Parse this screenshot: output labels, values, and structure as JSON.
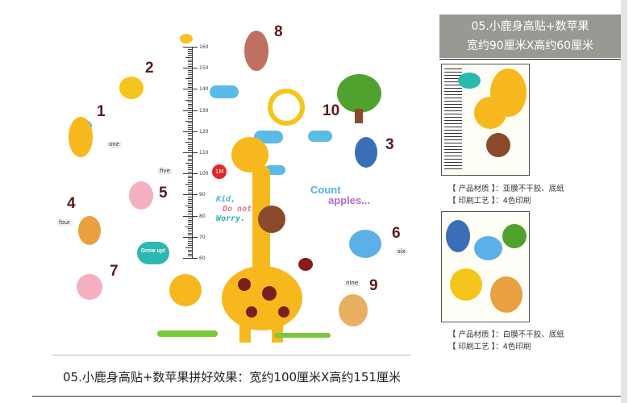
{
  "header": {
    "line1": "05.小鹿身高贴+数苹果",
    "line2": "宽约90厘米X高约60厘米"
  },
  "spec1": {
    "material": "【 产品材质 】：亚膜不干胶、底纸",
    "print": "【 印刷工艺 】：4色印刷"
  },
  "spec2": {
    "material": "【 产品材质 】：白膜不干胶、底纸",
    "print": "【 印刷工艺 】：4色印刷"
  },
  "caption": "05.小鹿身高贴+数苹果拼好效果：宽约100厘米X高约151厘米",
  "ruler": {
    "labels": [
      "160",
      "150",
      "140",
      "130",
      "120",
      "110",
      "100",
      "90",
      "80",
      "70",
      "60"
    ],
    "marker": "1M"
  },
  "numbers": [
    "1",
    "2",
    "3",
    "4",
    "5",
    "6",
    "7",
    "8",
    "9",
    "10"
  ],
  "word_labels": {
    "one": "one",
    "five": "five",
    "four": "four",
    "six": "six",
    "nine": "nine"
  },
  "slogan": {
    "l1": "Kid,",
    "l2": "Do not",
    "l3": "Worry."
  },
  "count": {
    "l1": "Count",
    "l2": "apples..."
  },
  "grow": "Grow up!",
  "colors": {
    "giraffe": "#f6b81c",
    "spots": "#7a1e1e",
    "cloud": "#5bbbe8",
    "header_bg": "#9a9893"
  }
}
